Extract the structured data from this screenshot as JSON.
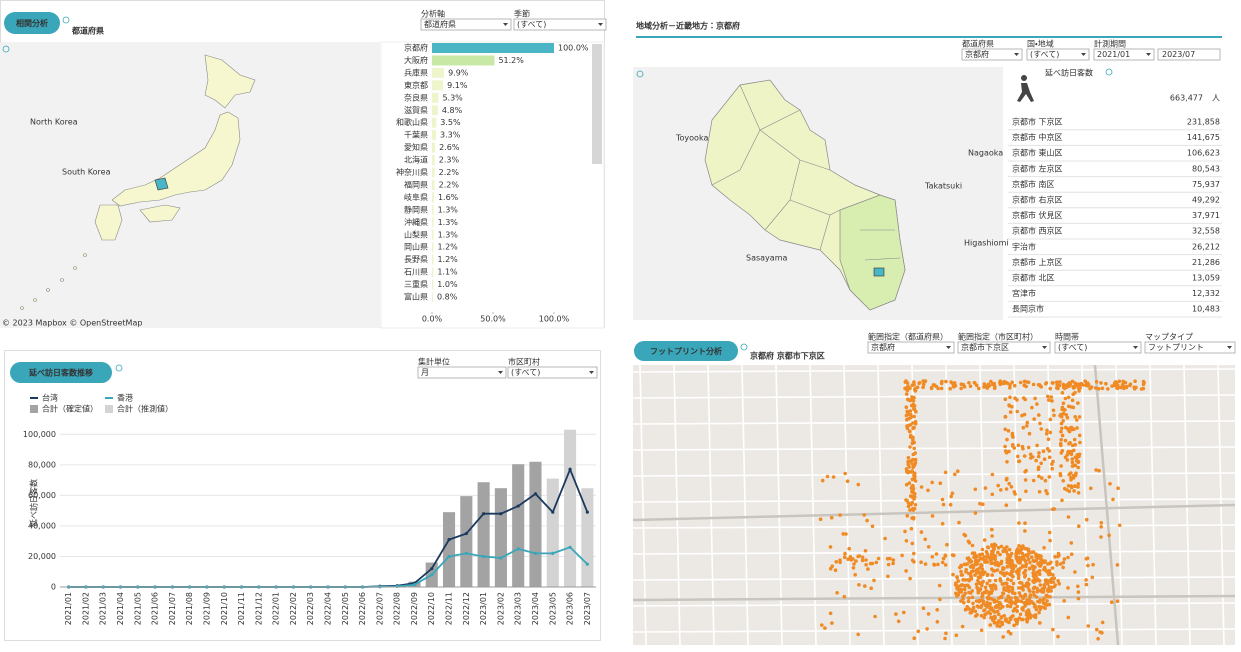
{
  "correlation": {
    "title": "相関分析",
    "subtitle": "都道府県",
    "filters": [
      {
        "label": "分析軸",
        "value": "都道府県"
      },
      {
        "label": "季節",
        "value": "(すべて)"
      }
    ],
    "map_labels": [
      "North Korea",
      "South Korea"
    ],
    "map_credit": "© 2023 Mapbox © OpenStreetMap"
  },
  "region": {
    "title": "地域分析－近畿地方：京都府",
    "filters": [
      {
        "label": "都道府県",
        "value": "京都府"
      },
      {
        "label": "国・地域",
        "value": "(すべて)"
      },
      {
        "label": "計測期間",
        "value": "2021/01"
      }
    ],
    "period_end": "2023/07",
    "map_labels": [
      "Toyooka",
      "Nagaoka",
      "Takatsuki",
      "Sasayama",
      "Higashiomi"
    ],
    "kpi": {
      "label": "延べ訪日客数",
      "value": "663,477",
      "unit": "人"
    },
    "table": {
      "rows": [
        [
          "京都市 下京区",
          "231,858"
        ],
        [
          "京都市 中京区",
          "141,675"
        ],
        [
          "京都市 東山区",
          "106,623"
        ],
        [
          "京都市 左京区",
          "80,543"
        ],
        [
          "京都市 南区",
          "75,937"
        ],
        [
          "京都市 右京区",
          "49,292"
        ],
        [
          "京都市 伏見区",
          "37,971"
        ],
        [
          "京都市 西京区",
          "32,558"
        ],
        [
          "宇治市",
          "26,212"
        ],
        [
          "京都市 上京区",
          "21,286"
        ],
        [
          "京都市 北区",
          "13,059"
        ],
        [
          "宮津市",
          "12,332"
        ],
        [
          "長岡京市",
          "10,483"
        ]
      ]
    }
  },
  "trend": {
    "title": "延べ訪日客数推移",
    "filters": [
      {
        "label": "集計単位",
        "value": "月"
      },
      {
        "label": "市区町村",
        "value": "(すべて)"
      }
    ]
  },
  "footprint": {
    "title": "フットプリント分析",
    "subtitle": "京都府 京都市下京区",
    "filters": [
      {
        "label": "範囲指定（都道府県）",
        "value": "京都府"
      },
      {
        "label": "範囲指定（市区町村）",
        "value": "京都市下京区"
      },
      {
        "label": "時間帯",
        "value": "(すべて)"
      },
      {
        "label": "マップタイプ",
        "value": "フットプリント"
      }
    ]
  },
  "chart_data": [
    {
      "type": "hbar",
      "categories": [
        "京都府",
        "大阪府",
        "兵庫県",
        "東京都",
        "奈良県",
        "滋賀県",
        "和歌山県",
        "千葉県",
        "愛知県",
        "北海道",
        "神奈川県",
        "福岡県",
        "岐阜県",
        "静岡県",
        "沖縄県",
        "山梨県",
        "岡山県",
        "長野県",
        "石川県",
        "三重県",
        "富山県"
      ],
      "values": [
        100.0,
        51.2,
        9.9,
        9.1,
        5.3,
        4.8,
        3.5,
        3.3,
        2.6,
        2.3,
        2.2,
        2.2,
        1.6,
        1.3,
        1.3,
        1.3,
        1.2,
        1.2,
        1.1,
        1.0,
        0.8
      ],
      "value_labels": [
        "100.0%",
        "51.2%",
        "9.9%",
        "9.1%",
        "5.3%",
        "4.8%",
        "3.5%",
        "3.3%",
        "2.6%",
        "2.3%",
        "2.2%",
        "2.2%",
        "1.6%",
        "1.3%",
        "1.3%",
        "1.3%",
        "1.2%",
        "1.2%",
        "1.1%",
        "1.0%",
        "0.8%"
      ],
      "colors": [
        "#4ab5c4",
        "#c8e8a6",
        "#eef5cc"
      ],
      "xlim": [
        0,
        100
      ],
      "xticks": [
        {
          "value": 0,
          "label": "0.0%"
        },
        {
          "value": 50,
          "label": "50.0%"
        },
        {
          "value": 100,
          "label": "100.0%"
        }
      ]
    },
    {
      "type": "combo",
      "y_label": "延べ訪日客数",
      "categories": [
        "2021/01",
        "2021/02",
        "2021/03",
        "2021/04",
        "2021/05",
        "2021/06",
        "2021/07",
        "2021/08",
        "2021/09",
        "2021/10",
        "2021/11",
        "2021/12",
        "2022/01",
        "2022/02",
        "2022/03",
        "2022/04",
        "2022/05",
        "2022/06",
        "2022/07",
        "2022/08",
        "2022/09",
        "2022/10",
        "2022/11",
        "2022/12",
        "2023/01",
        "2023/02",
        "2023/03",
        "2023/04",
        "2023/05",
        "2023/06",
        "2023/07"
      ],
      "series": [
        {
          "name": "台湾",
          "kind": "line",
          "color": "#1b3a5e",
          "values": [
            0,
            0,
            0,
            0,
            0,
            0,
            0,
            0,
            0,
            0,
            0,
            0,
            0,
            0,
            0,
            0,
            0,
            0,
            500,
            800,
            2500,
            12000,
            31000,
            35000,
            48000,
            48000,
            53000,
            61000,
            49000,
            77000,
            49000
          ]
        },
        {
          "name": "香港",
          "kind": "line",
          "color": "#3aa6b9",
          "values": [
            0,
            0,
            0,
            0,
            0,
            0,
            0,
            0,
            0,
            0,
            0,
            0,
            0,
            0,
            0,
            0,
            0,
            0,
            200,
            400,
            1500,
            8000,
            20000,
            22000,
            20000,
            19000,
            25000,
            22000,
            22000,
            26000,
            15000
          ]
        },
        {
          "name": "合計（確定値）",
          "kind": "bar",
          "color": "#a3a3a3",
          "values": [
            0,
            0,
            0,
            0,
            0,
            0,
            0,
            0,
            0,
            0,
            0,
            0,
            0,
            0,
            0,
            0,
            0,
            500,
            700,
            1000,
            3500,
            16000,
            49000,
            59500,
            68600,
            64700,
            80400,
            82000,
            null,
            null,
            null
          ]
        },
        {
          "name": "合計（推測値）",
          "kind": "bar",
          "color": "#d3d3d3",
          "values": [
            null,
            null,
            null,
            null,
            null,
            null,
            null,
            null,
            null,
            null,
            null,
            null,
            null,
            null,
            null,
            null,
            null,
            null,
            null,
            null,
            null,
            null,
            null,
            null,
            null,
            null,
            null,
            null,
            71000,
            103000,
            64700
          ]
        }
      ],
      "ylim": [
        0,
        110000
      ],
      "yticks": [
        0,
        {
          "value": 20000,
          "label": "20,000"
        },
        {
          "value": 40000,
          "label": "40,000"
        },
        {
          "value": 60000,
          "label": "60,000"
        },
        {
          "value": 80000,
          "label": "80,000"
        },
        {
          "value": 100000,
          "label": "100,000"
        }
      ],
      "grid": true
    }
  ]
}
